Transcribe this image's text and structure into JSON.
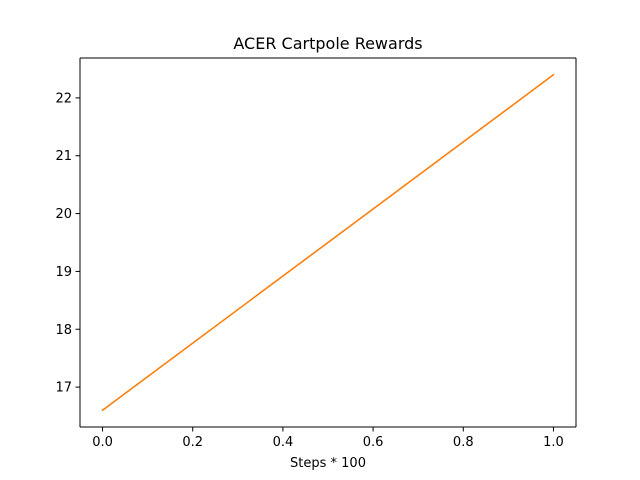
{
  "chart_data": {
    "type": "line",
    "title": "ACER Cartpole Rewards",
    "xlabel": "Steps * 100",
    "ylabel": "",
    "xlim": [
      -0.05,
      1.05
    ],
    "ylim": [
      16.31,
      22.69
    ],
    "xticks": [
      0.0,
      0.2,
      0.4,
      0.6,
      0.8,
      1.0
    ],
    "xtick_labels": [
      "0.0",
      "0.2",
      "0.4",
      "0.6",
      "0.8",
      "1.0"
    ],
    "yticks": [
      17,
      18,
      19,
      20,
      21,
      22
    ],
    "ytick_labels": [
      "17",
      "18",
      "19",
      "20",
      "21",
      "22"
    ],
    "grid": false,
    "series": [
      {
        "name": "rewards",
        "color": "#ff7f0e",
        "x": [
          0.0,
          1.0
        ],
        "y": [
          16.6,
          22.4
        ]
      }
    ]
  }
}
